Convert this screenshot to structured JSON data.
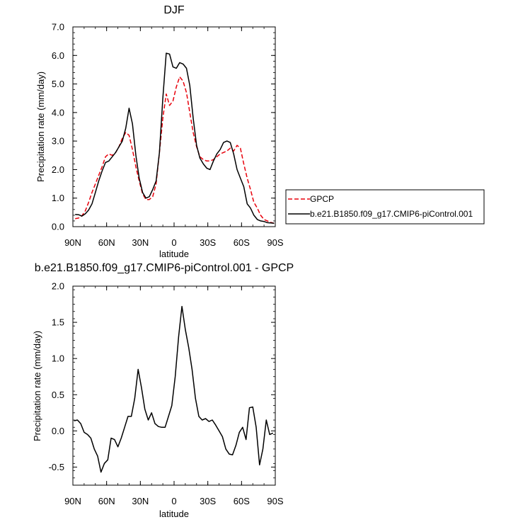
{
  "chart_data": [
    {
      "type": "line",
      "title": "DJF",
      "xlabel": "latitude",
      "ylabel": "Precipitation rate (mm/day)",
      "xlim": [
        90,
        -90
      ],
      "ylim": [
        0,
        7
      ],
      "xticks": [
        90,
        60,
        30,
        0,
        -30,
        -60,
        -90
      ],
      "xtick_labels": [
        "90N",
        "60N",
        "30N",
        "0",
        "30S",
        "60S",
        "90S"
      ],
      "yticks": [
        0,
        1,
        2,
        3,
        4,
        5,
        6,
        7
      ],
      "ytick_labels": [
        "0.0",
        "1.0",
        "2.0",
        "3.0",
        "4.0",
        "5.0",
        "6.0",
        "7.0"
      ],
      "grid": false,
      "legend_position": "right",
      "series": [
        {
          "name": "GPCP",
          "color": "#e8000b",
          "dash": "dashed",
          "x": [
            88,
            85,
            82,
            79,
            76,
            73,
            70,
            67,
            64,
            61,
            58,
            55,
            52,
            49,
            46,
            43,
            40,
            37,
            34,
            31,
            28,
            25,
            22,
            19,
            16,
            13,
            10,
            7,
            4,
            1,
            -2,
            -5,
            -8,
            -11,
            -14,
            -17,
            -20,
            -23,
            -26,
            -29,
            -32,
            -35,
            -38,
            -41,
            -44,
            -47,
            -50,
            -53,
            -56,
            -59,
            -62,
            -65,
            -68,
            -71,
            -74,
            -77,
            -80,
            -83,
            -86,
            -89
          ],
          "y": [
            0.28,
            0.3,
            0.38,
            0.55,
            0.85,
            1.2,
            1.5,
            1.8,
            2.1,
            2.45,
            2.55,
            2.5,
            2.6,
            2.8,
            3.1,
            3.3,
            3.2,
            2.7,
            2.1,
            1.6,
            1.15,
            0.95,
            0.95,
            1.05,
            1.5,
            2.6,
            3.8,
            4.65,
            4.25,
            4.4,
            4.9,
            5.25,
            5.1,
            4.7,
            4.0,
            3.3,
            2.8,
            2.45,
            2.35,
            2.3,
            2.3,
            2.35,
            2.45,
            2.55,
            2.6,
            2.65,
            2.75,
            2.65,
            2.85,
            2.75,
            2.2,
            1.7,
            1.3,
            0.85,
            0.65,
            0.4,
            0.25,
            0.2,
            0.15,
            0.12
          ]
        },
        {
          "name": "b.e21.B1850.f09_g17.CMIP6-piControl.001",
          "color": "#000000",
          "dash": "solid",
          "x": [
            88,
            85,
            82,
            79,
            76,
            73,
            70,
            67,
            64,
            61,
            58,
            55,
            52,
            49,
            46,
            43,
            40,
            37,
            34,
            31,
            28,
            25,
            22,
            19,
            16,
            13,
            10,
            7,
            4,
            1,
            -2,
            -5,
            -8,
            -11,
            -14,
            -17,
            -20,
            -23,
            -26,
            -29,
            -32,
            -35,
            -38,
            -41,
            -44,
            -47,
            -50,
            -53,
            -56,
            -59,
            -62,
            -65,
            -68,
            -71,
            -74,
            -77,
            -80,
            -83,
            -86,
            -89
          ],
          "y": [
            0.43,
            0.42,
            0.37,
            0.45,
            0.58,
            0.8,
            1.2,
            1.6,
            1.95,
            2.25,
            2.3,
            2.45,
            2.6,
            2.8,
            3.0,
            3.45,
            4.15,
            3.6,
            2.5,
            1.7,
            1.2,
            1.0,
            1.05,
            1.3,
            1.6,
            2.6,
            4.5,
            6.08,
            6.05,
            5.6,
            5.55,
            5.75,
            5.7,
            5.55,
            4.95,
            3.8,
            2.85,
            2.4,
            2.2,
            2.05,
            2.0,
            2.3,
            2.55,
            2.7,
            2.95,
            3.0,
            2.95,
            2.55,
            2.0,
            1.7,
            1.4,
            0.8,
            0.65,
            0.4,
            0.25,
            0.2,
            0.18,
            0.14,
            0.13,
            0.12
          ]
        }
      ]
    },
    {
      "type": "line",
      "title": "b.e21.B1850.f09_g17.CMIP6-piControl.001 - GPCP",
      "xlabel": "latitude",
      "ylabel": "Precipitation rate (mm/day)",
      "xlim": [
        90,
        -90
      ],
      "ylim": [
        -0.75,
        2.0
      ],
      "xticks": [
        90,
        60,
        30,
        0,
        -30,
        -60,
        -90
      ],
      "xtick_labels": [
        "90N",
        "60N",
        "30N",
        "0",
        "30S",
        "60S",
        "90S"
      ],
      "yticks": [
        -0.5,
        0,
        0.5,
        1.0,
        1.5,
        2.0
      ],
      "ytick_labels": [
        "-0.5",
        "0.0",
        "0.5",
        "1.0",
        "1.5",
        "2.0"
      ],
      "grid": false,
      "series": [
        {
          "color": "#000000",
          "dash": "solid",
          "x": [
            89,
            86,
            83,
            80,
            77,
            74,
            71,
            68,
            65,
            62,
            59,
            56,
            53,
            50,
            47,
            44,
            41,
            38,
            35,
            32,
            29,
            26,
            23,
            20,
            17,
            14,
            11,
            8,
            5,
            2,
            -1,
            -4,
            -7,
            -10,
            -13,
            -16,
            -19,
            -22,
            -25,
            -28,
            -31,
            -34,
            -37,
            -40,
            -43,
            -46,
            -49,
            -52,
            -55,
            -58,
            -61,
            -64,
            -67,
            -70,
            -73,
            -76,
            -79,
            -82,
            -85,
            -88
          ],
          "y": [
            0.14,
            0.15,
            0.1,
            -0.02,
            -0.05,
            -0.1,
            -0.25,
            -0.35,
            -0.57,
            -0.45,
            -0.4,
            -0.1,
            -0.12,
            -0.22,
            -0.1,
            0.05,
            0.2,
            0.2,
            0.45,
            0.85,
            0.6,
            0.3,
            0.15,
            0.25,
            0.1,
            0.06,
            0.05,
            0.05,
            0.2,
            0.35,
            0.75,
            1.3,
            1.72,
            1.4,
            1.15,
            0.85,
            0.45,
            0.2,
            0.15,
            0.17,
            0.13,
            0.15,
            0.08,
            0.0,
            -0.08,
            -0.25,
            -0.32,
            -0.33,
            -0.2,
            -0.02,
            0.05,
            -0.12,
            0.32,
            0.33,
            0.05,
            -0.47,
            -0.25,
            0.15,
            -0.05,
            -0.03
          ]
        }
      ]
    }
  ]
}
